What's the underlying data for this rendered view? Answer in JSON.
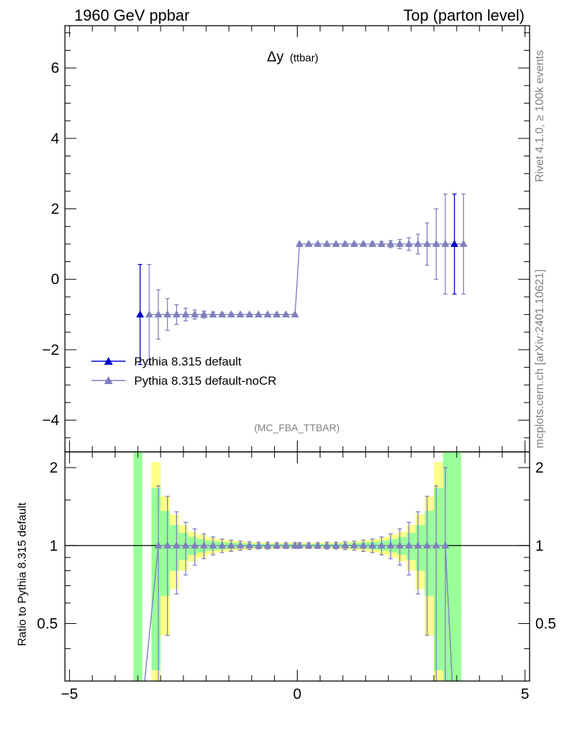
{
  "header": {
    "left": "1960 GeV ppbar",
    "right": "Top (parton level)"
  },
  "side_labels": {
    "rivet": "Rivet 4.1.0, ≥ 100k events",
    "mcplots": "mcplots.cern.ch [arXiv:2401.10621]"
  },
  "chart_data": [
    {
      "type": "line",
      "panel": "main",
      "title": "Δy",
      "title_sub": "(ttbar)",
      "analysis": "(MC_FBA_TTBAR)",
      "xlim": [
        -5.1,
        5.1
      ],
      "ylim": [
        -4.9,
        7.2
      ],
      "yticks": [
        -4,
        -2,
        0,
        2,
        4,
        6
      ],
      "ytick_labels": [
        "−4",
        "−2",
        "0",
        "2",
        "4",
        "6"
      ],
      "xlabel": "",
      "ylabel": "",
      "legend": [
        "Pythia 8.315 default",
        "Pythia 8.315 default-noCR"
      ],
      "series": [
        {
          "name": "Pythia 8.315 default",
          "color": "#0000cc",
          "marker": "triangle",
          "x": [
            -3.45,
            3.45
          ],
          "y": [
            -1.0,
            1.0
          ],
          "err": [
            1.42,
            1.42
          ]
        },
        {
          "name": "Pythia 8.315 default-noCR",
          "color": "#7f7fbf",
          "marker": "triangle",
          "x": [
            -3.25,
            -3.05,
            -2.85,
            -2.65,
            -2.45,
            -2.25,
            -2.05,
            -1.85,
            -1.65,
            -1.45,
            -1.25,
            -1.05,
            -0.85,
            -0.65,
            -0.45,
            -0.25,
            -0.05,
            0.05,
            0.25,
            0.45,
            0.65,
            0.85,
            1.05,
            1.25,
            1.45,
            1.65,
            1.85,
            2.05,
            2.25,
            2.45,
            2.65,
            2.85,
            3.05,
            3.25,
            3.65
          ],
          "y": [
            -1.0,
            -1.0,
            -1.0,
            -1.0,
            -1.0,
            -1.0,
            -1.0,
            -1.0,
            -1.0,
            -1.0,
            -1.0,
            -1.0,
            -1.0,
            -1.0,
            -1.0,
            -1.0,
            -1.0,
            1.0,
            1.0,
            1.0,
            1.0,
            1.0,
            1.0,
            1.0,
            1.0,
            1.0,
            1.0,
            1.0,
            1.0,
            1.0,
            1.0,
            1.0,
            1.0,
            1.0,
            1.0
          ],
          "err": [
            1.42,
            0.7,
            0.45,
            0.28,
            0.18,
            0.13,
            0.1,
            0.07,
            0.05,
            0.04,
            0.03,
            0.03,
            0.02,
            0.02,
            0.02,
            0.02,
            0.02,
            0.02,
            0.02,
            0.02,
            0.02,
            0.02,
            0.03,
            0.03,
            0.04,
            0.05,
            0.07,
            0.1,
            0.13,
            0.18,
            0.28,
            0.6,
            1.0,
            1.42,
            1.42
          ]
        }
      ]
    },
    {
      "type": "line",
      "panel": "ratio",
      "xlim": [
        -5.1,
        5.1
      ],
      "ylim": [
        0.3,
        2.3
      ],
      "ylabel": "Ratio to Pythia 8.315 default",
      "yticks": [
        0.5,
        1,
        2
      ],
      "ytick_labels": [
        "0.5",
        "1",
        "2"
      ],
      "xticks": [
        -5,
        0,
        5
      ],
      "xtick_labels": [
        "−5",
        "0",
        "5"
      ],
      "reference_line": 1,
      "band_x": [
        -3.6,
        -3.4,
        -3.2,
        -3.0,
        -2.8,
        -2.6,
        -2.4,
        -2.2,
        -2.0,
        -1.8,
        -1.6,
        -1.4,
        -1.2,
        -1.0,
        -0.8,
        -0.6,
        -0.4,
        -0.2,
        0.0,
        0.2,
        0.4,
        0.6,
        0.8,
        1.0,
        1.2,
        1.4,
        1.6,
        1.8,
        2.0,
        2.2,
        2.4,
        2.6,
        2.8,
        3.0,
        3.2,
        3.4,
        3.6
      ],
      "band_inner": [
        2.3,
        null,
        0.67,
        0.36,
        0.2,
        0.12,
        0.08,
        0.06,
        0.045,
        0.035,
        0.03,
        0.025,
        0.02,
        0.018,
        0.016,
        0.015,
        0.014,
        0.014,
        0.014,
        0.014,
        0.015,
        0.016,
        0.018,
        0.02,
        0.025,
        0.03,
        0.035,
        0.045,
        0.06,
        0.08,
        0.12,
        0.2,
        0.36,
        0.67,
        2.3,
        2.3
      ],
      "band_outer": [
        2.3,
        null,
        1.1,
        0.55,
        0.32,
        0.2,
        0.13,
        0.1,
        0.075,
        0.06,
        0.05,
        0.04,
        0.035,
        0.03,
        0.028,
        0.026,
        0.025,
        0.025,
        0.025,
        0.025,
        0.026,
        0.028,
        0.03,
        0.035,
        0.04,
        0.05,
        0.06,
        0.075,
        0.1,
        0.13,
        0.2,
        0.32,
        0.55,
        1.1,
        2.3,
        2.3
      ],
      "band_colors": {
        "inner": "#99ff99",
        "outer": "#ffff88"
      },
      "series": [
        {
          "name": "Pythia 8.315 default-noCR",
          "color": "#7f7fbf",
          "x": [
            -3.05,
            -2.85,
            -2.65,
            -2.45,
            -2.25,
            -2.05,
            -1.85,
            -1.65,
            -1.45,
            -1.25,
            -1.05,
            -0.85,
            -0.65,
            -0.45,
            -0.25,
            -0.05,
            0.05,
            0.25,
            0.45,
            0.65,
            0.85,
            1.05,
            1.25,
            1.45,
            1.65,
            1.85,
            2.05,
            2.25,
            2.45,
            2.65,
            2.85,
            3.05,
            3.25
          ],
          "y": [
            1,
            1,
            1,
            1,
            1,
            1,
            1,
            1,
            1,
            1,
            1,
            1,
            1,
            1,
            1,
            1,
            1,
            1,
            1,
            1,
            1,
            1,
            1,
            1,
            1,
            1,
            1,
            1,
            1,
            1,
            1,
            1,
            1
          ],
          "err": [
            0.7,
            0.55,
            0.35,
            0.23,
            0.16,
            0.11,
            0.08,
            0.06,
            0.05,
            0.04,
            0.035,
            0.03,
            0.03,
            0.025,
            0.025,
            0.025,
            0.025,
            0.025,
            0.025,
            0.03,
            0.03,
            0.035,
            0.04,
            0.05,
            0.06,
            0.08,
            0.11,
            0.16,
            0.23,
            0.35,
            0.55,
            0.7,
            1.0
          ]
        }
      ]
    }
  ]
}
